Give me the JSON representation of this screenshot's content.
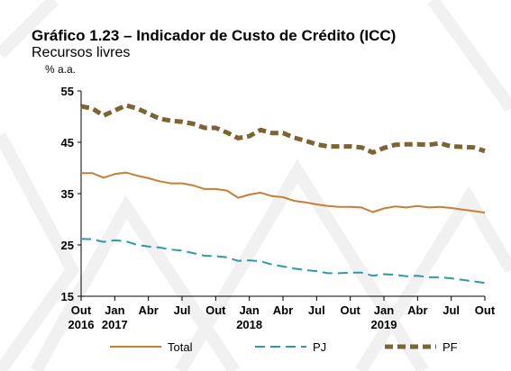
{
  "title": "Gráfico 1.23 – Indicador de Custo de Crédito (ICC)",
  "subtitle": "Recursos livres",
  "unit": "% a.a.",
  "chart_data": {
    "type": "line",
    "title": "Gráfico 1.23 – Indicador de Custo de Crédito (ICC)",
    "subtitle": "Recursos livres",
    "ylabel": "% a.a.",
    "xlabel": "",
    "ylim": [
      15,
      55
    ],
    "yticks": [
      15,
      25,
      35,
      45,
      55
    ],
    "grid": false,
    "legend_position": "bottom",
    "x_ticks": [
      {
        "index": 0,
        "line1": "Out",
        "line2": "2016"
      },
      {
        "index": 3,
        "line1": "Jan",
        "line2": "2017"
      },
      {
        "index": 6,
        "line1": "Abr",
        "line2": ""
      },
      {
        "index": 9,
        "line1": "Jul",
        "line2": ""
      },
      {
        "index": 12,
        "line1": "Out",
        "line2": ""
      },
      {
        "index": 15,
        "line1": "Jan",
        "line2": "2018"
      },
      {
        "index": 18,
        "line1": "Abr",
        "line2": ""
      },
      {
        "index": 21,
        "line1": "Jul",
        "line2": ""
      },
      {
        "index": 24,
        "line1": "Out",
        "line2": ""
      },
      {
        "index": 27,
        "line1": "Jan",
        "line2": "2019"
      },
      {
        "index": 30,
        "line1": "Abr",
        "line2": ""
      },
      {
        "index": 33,
        "line1": "Jul",
        "line2": ""
      },
      {
        "index": 36,
        "line1": "Out",
        "line2": ""
      }
    ],
    "x": [
      "2016-10",
      "2016-11",
      "2016-12",
      "2017-01",
      "2017-02",
      "2017-03",
      "2017-04",
      "2017-05",
      "2017-06",
      "2017-07",
      "2017-08",
      "2017-09",
      "2017-10",
      "2017-11",
      "2017-12",
      "2018-01",
      "2018-02",
      "2018-03",
      "2018-04",
      "2018-05",
      "2018-06",
      "2018-07",
      "2018-08",
      "2018-09",
      "2018-10",
      "2018-11",
      "2018-12",
      "2019-01",
      "2019-02",
      "2019-03",
      "2019-04",
      "2019-05",
      "2019-06",
      "2019-07",
      "2019-08",
      "2019-09",
      "2019-10"
    ],
    "series": [
      {
        "name": "Total",
        "color": "#c87f35",
        "style": "solid",
        "values": [
          39.0,
          39.0,
          38.1,
          38.8,
          39.1,
          38.5,
          38.0,
          37.4,
          37.0,
          37.0,
          36.6,
          35.9,
          35.9,
          35.6,
          34.2,
          34.8,
          35.2,
          34.5,
          34.3,
          33.6,
          33.3,
          32.9,
          32.6,
          32.4,
          32.4,
          32.3,
          31.4,
          32.1,
          32.5,
          32.3,
          32.6,
          32.3,
          32.4,
          32.2,
          31.9,
          31.6,
          31.3
        ]
      },
      {
        "name": "PJ",
        "color": "#2a9aad",
        "style": "dashed",
        "values": [
          26.2,
          26.1,
          25.6,
          25.9,
          25.7,
          25.0,
          24.7,
          24.5,
          24.1,
          23.9,
          23.4,
          22.9,
          22.8,
          22.6,
          21.9,
          22.0,
          21.8,
          21.2,
          20.8,
          20.4,
          20.1,
          19.9,
          19.5,
          19.5,
          19.6,
          19.6,
          19.0,
          19.3,
          19.2,
          18.9,
          19.0,
          18.7,
          18.7,
          18.5,
          18.2,
          17.9,
          17.6
        ]
      },
      {
        "name": "PF",
        "color": "#7d6431",
        "style": "thick-dashed",
        "values": [
          52.0,
          51.6,
          50.2,
          51.2,
          52.2,
          51.6,
          50.6,
          49.6,
          49.2,
          49.0,
          48.6,
          47.8,
          47.8,
          46.9,
          45.8,
          46.2,
          47.4,
          46.8,
          46.8,
          45.9,
          45.3,
          44.6,
          44.2,
          44.2,
          44.2,
          44.0,
          43.0,
          43.9,
          44.5,
          44.6,
          44.6,
          44.5,
          44.8,
          44.2,
          44.1,
          44.0,
          43.3
        ]
      }
    ]
  }
}
